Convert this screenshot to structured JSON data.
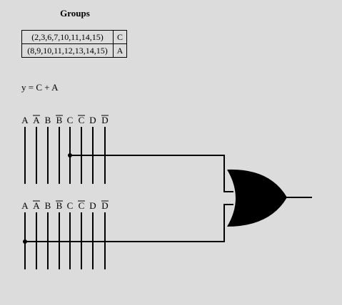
{
  "title": "Groups",
  "groups": [
    {
      "terms": "(2,3,6,7,10,11,14,15)",
      "var": "C"
    },
    {
      "terms": "(8,9,10,11,12,13,14,15)",
      "var": "A"
    }
  ],
  "expression": "y = C + A",
  "bus_labels": [
    {
      "text": "A",
      "bar": false
    },
    {
      "text": "A",
      "bar": true
    },
    {
      "text": "B",
      "bar": false
    },
    {
      "text": "B",
      "bar": true
    },
    {
      "text": "C",
      "bar": false
    },
    {
      "text": "C",
      "bar": true
    },
    {
      "text": "D",
      "bar": false
    },
    {
      "text": "D",
      "bar": true
    }
  ],
  "colors": {
    "background": "#dcdcdc",
    "ink": "#000000"
  },
  "gate": {
    "type": "OR",
    "inputs": [
      "C",
      "A"
    ]
  }
}
